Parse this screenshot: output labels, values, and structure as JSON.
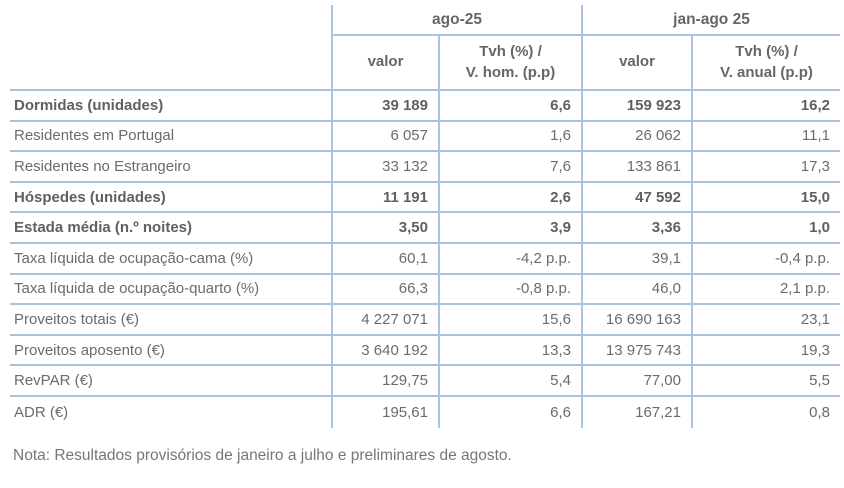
{
  "colors": {
    "table_border": "#aac3e1",
    "text_regular": "#6b6b6b",
    "text_bold": "#606060",
    "note_text": "#767676"
  },
  "table": {
    "header": {
      "group_ago": "ago-25",
      "group_janago": "jan-ago 25",
      "valor_ago": "valor",
      "tvh_ago": "Tvh (%) /\nV. hom. (p.p)",
      "valor_janago": "valor",
      "tvh_janago": "Tvh (%) /\nV. anual (p.p)"
    },
    "rows": [
      {
        "label": "Dormidas (unidades)",
        "v1": "39 189",
        "t1": "6,6",
        "v2": "159 923",
        "t2": "16,2"
      },
      {
        "label": "Residentes em Portugal",
        "v1": "6 057",
        "t1": "1,6",
        "v2": "26 062",
        "t2": "11,1"
      },
      {
        "label": "Residentes no Estrangeiro",
        "v1": "33 132",
        "t1": "7,6",
        "v2": "133 861",
        "t2": "17,3"
      },
      {
        "label": "Hóspedes (unidades)",
        "v1": "11 191",
        "t1": "2,6",
        "v2": "47 592",
        "t2": "15,0"
      },
      {
        "label": "Estada média (n.º noites)",
        "v1": "3,50",
        "t1": "3,9",
        "v2": "3,36",
        "t2": "1,0"
      },
      {
        "label": "Taxa líquida de ocupação-cama (%)",
        "v1": "60,1",
        "t1": "-4,2 p.p.",
        "v2": "39,1",
        "t2": "-0,4 p.p."
      },
      {
        "label": "Taxa líquida de ocupação-quarto (%)",
        "v1": "66,3",
        "t1": "-0,8 p.p.",
        "v2": "46,0",
        "t2": "2,1 p.p."
      },
      {
        "label": "Proveitos totais (€)",
        "v1": "4 227 071",
        "t1": "15,6",
        "v2": "16 690 163",
        "t2": "23,1"
      },
      {
        "label": "Proveitos aposento (€)",
        "v1": "3 640 192",
        "t1": "13,3",
        "v2": "13 975 743",
        "t2": "19,3"
      },
      {
        "label": "RevPAR (€)",
        "v1": "129,75",
        "t1": "5,4",
        "v2": "77,00",
        "t2": "5,5"
      },
      {
        "label": "ADR (€)",
        "v1": "195,61",
        "t1": "6,6",
        "v2": "167,21",
        "t2": "0,8"
      }
    ]
  },
  "note": "Nota: Resultados provisórios de janeiro a julho e preliminares de agosto."
}
